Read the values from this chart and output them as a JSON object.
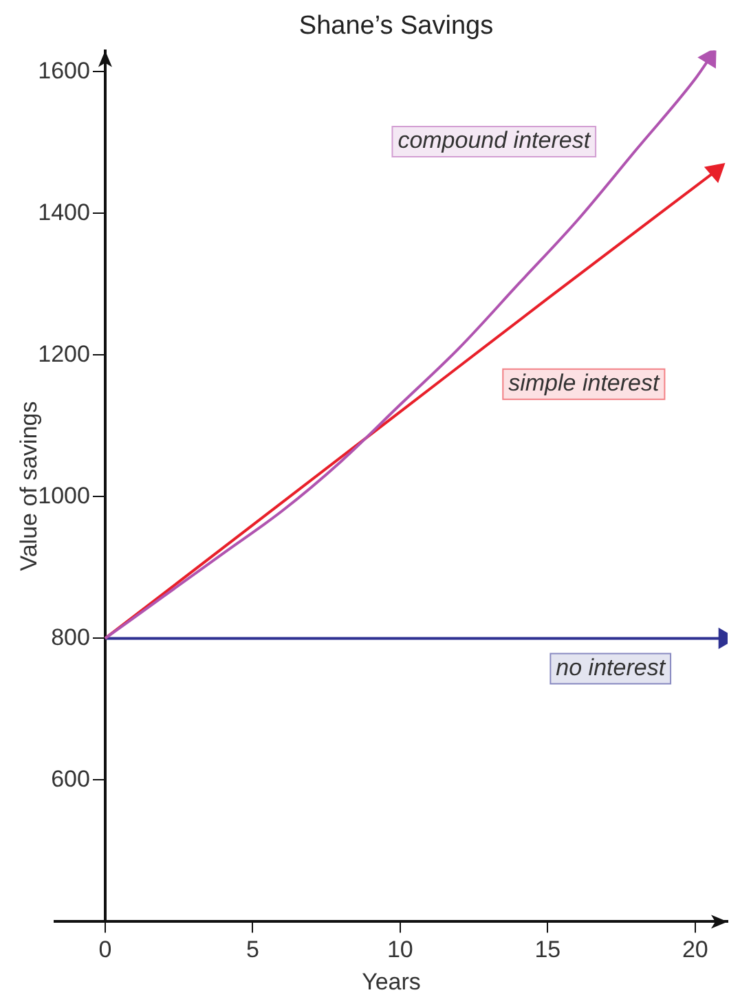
{
  "chart_data": {
    "type": "line",
    "title": "Shane’s Savings",
    "xlabel": "Years",
    "ylabel": "Value of savings",
    "xlim": [
      -1.7,
      21.1
    ],
    "ylim": [
      400,
      1630
    ],
    "xticks": [
      0,
      5,
      10,
      15,
      20
    ],
    "yticks": [
      600,
      800,
      1000,
      1200,
      1400,
      1600
    ],
    "grid": false,
    "legend": false,
    "marker": "none",
    "series": [
      {
        "color": "#b054b0",
        "x": [
          0,
          2,
          4,
          6,
          8,
          10,
          12,
          14,
          16,
          18,
          20,
          20.5
        ],
        "values": [
          800,
          860,
          920,
          980,
          1050,
          1130,
          1210,
          1300,
          1390,
          1490,
          1590,
          1620
        ]
      },
      {
        "color": "#e8202a",
        "x": [
          0,
          5,
          10,
          15,
          20.7
        ],
        "values": [
          800,
          960,
          1120,
          1280,
          1460
        ]
      },
      {
        "color": "#2e3192",
        "x": [
          0,
          5,
          10,
          15,
          21
        ],
        "values": [
          800,
          800,
          800,
          800,
          800
        ]
      }
    ],
    "annotations": [
      "compound interest",
      "simple interest",
      "no interest"
    ]
  }
}
